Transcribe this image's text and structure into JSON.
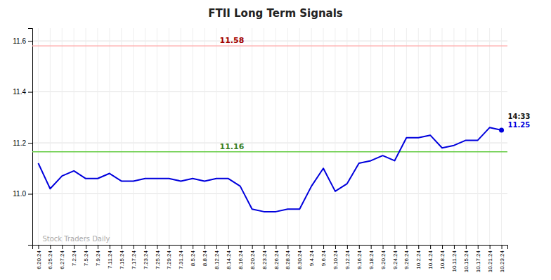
{
  "chart_data": {
    "type": "line",
    "title": "FTII Long Term Signals",
    "categories": [
      "6.20.24",
      "6.25.24",
      "6.27.24",
      "7.2.24",
      "7.5.24",
      "7.9.24",
      "7.11.24",
      "7.15.24",
      "7.17.24",
      "7.23.24",
      "7.25.24",
      "7.29.24",
      "7.31.24",
      "8.5.24",
      "8.8.24",
      "8.12.24",
      "8.14.24",
      "8.16.24",
      "8.20.24",
      "8.23.24",
      "8.26.24",
      "8.28.24",
      "8.30.24",
      "9.4.24",
      "9.6.24",
      "9.10.24",
      "9.12.24",
      "9.16.24",
      "9.18.24",
      "9.20.24",
      "9.24.24",
      "9.26.24",
      "10.2.24",
      "10.4.24",
      "10.8.24",
      "10.11.24",
      "10.15.24",
      "10.17.24",
      "10.21.24",
      "10.23.24"
    ],
    "values": [
      11.12,
      11.02,
      11.07,
      11.09,
      11.06,
      11.06,
      11.08,
      11.05,
      11.05,
      11.06,
      11.06,
      11.06,
      11.05,
      11.06,
      11.05,
      11.06,
      11.06,
      11.03,
      10.94,
      10.93,
      10.93,
      10.94,
      10.94,
      11.03,
      11.1,
      11.01,
      11.04,
      11.12,
      11.13,
      11.15,
      11.13,
      11.22,
      11.22,
      11.23,
      11.18,
      11.19,
      11.21,
      11.21,
      11.26,
      11.25
    ],
    "color": "#0000dd",
    "ylim": [
      10.8,
      11.65
    ],
    "yticks": [
      {
        "value": 11.0,
        "label": "11.0"
      },
      11.2,
      11.4,
      11.6
    ],
    "grid": true,
    "reference_lines": [
      {
        "value": 11.58,
        "label": "11.58",
        "color": "#ffaaaa"
      },
      {
        "value": 11.165,
        "label": "11.16",
        "color": "#66cc44"
      }
    ],
    "last_time_label": "14:33",
    "last_value_label": "11.25",
    "watermark": "Stock Traders Daily"
  }
}
